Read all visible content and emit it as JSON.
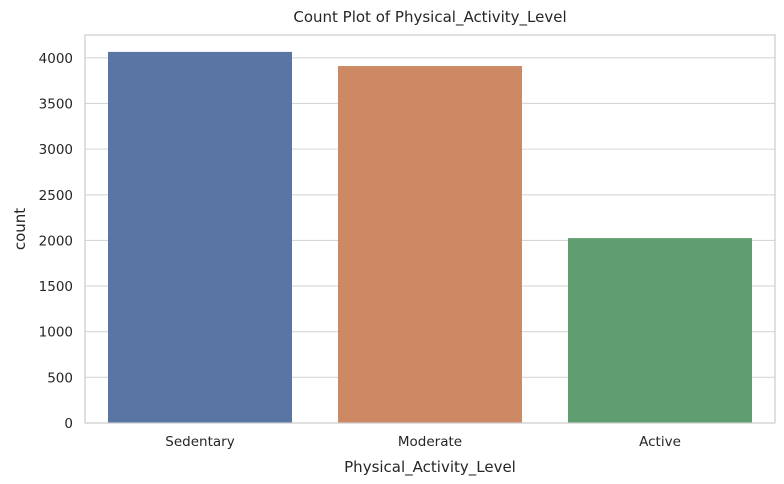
{
  "chart_data": {
    "type": "bar",
    "title": "Count Plot of Physical_Activity_Level",
    "xlabel": "Physical_Activity_Level",
    "ylabel": "count",
    "categories": [
      "Sedentary",
      "Moderate",
      "Active"
    ],
    "values": [
      4065,
      3910,
      2025
    ],
    "colors": [
      "#5975a4",
      "#cc8963",
      "#5f9e6e"
    ],
    "ylim": [
      0,
      4250
    ],
    "yticks": [
      0,
      500,
      1000,
      1500,
      2000,
      2500,
      3000,
      3500,
      4000
    ],
    "grid": true
  }
}
